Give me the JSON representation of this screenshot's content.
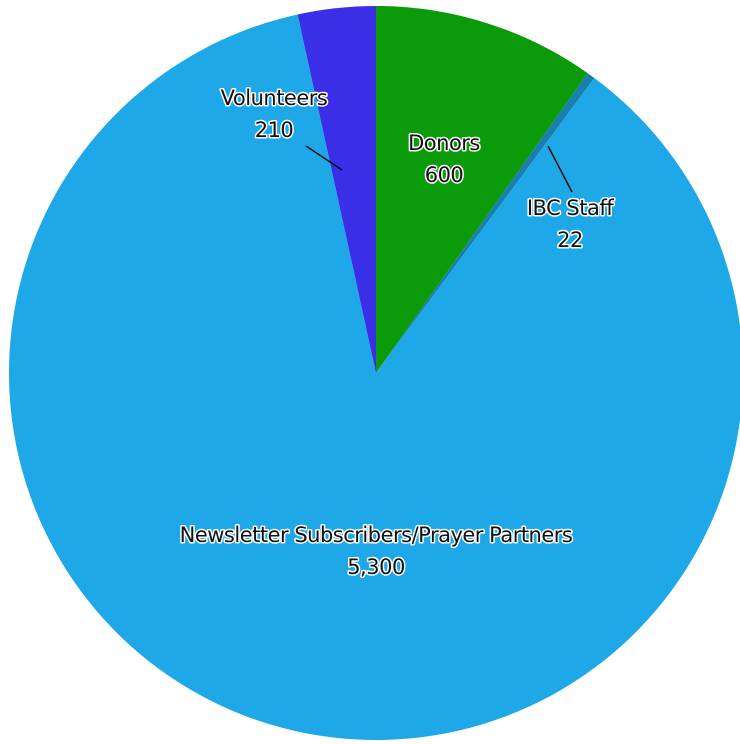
{
  "chart_data": {
    "type": "pie",
    "start_angle_deg": 0,
    "direction": "clockwise",
    "slices": [
      {
        "label": "Donors",
        "value": 600,
        "value_label": "600",
        "color": "#0a9a0a"
      },
      {
        "label": "IBC Staff",
        "value": 22,
        "value_label": "22",
        "color": "#1a7fb0"
      },
      {
        "label": "Newsletter Subscribers/Prayer Partners",
        "value": 5300,
        "value_label": "5,300",
        "color": "#1ea8e8"
      },
      {
        "label": "Volunteers",
        "value": 210,
        "value_label": "210",
        "color": "#3a2ee6"
      }
    ]
  }
}
